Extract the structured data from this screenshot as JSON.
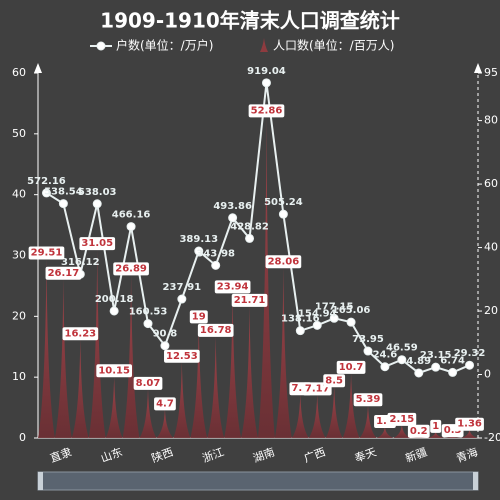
{
  "chart_data": {
    "type": "pictorial-bar-line",
    "title": "1909-1910年清末人口调查统计",
    "categories": [
      null,
      "直隶",
      null,
      null,
      "山东",
      null,
      null,
      "陕西",
      null,
      null,
      "浙江",
      null,
      null,
      "湖南",
      null,
      null,
      "广西",
      null,
      null,
      "奉天",
      null,
      null,
      "新疆",
      null,
      null,
      "青海"
    ],
    "series": [
      {
        "name": "户数(单位：/万户)",
        "type": "line",
        "axis": "y2",
        "color": "#e8f0f0",
        "values": [
          572.16,
          538.54,
          316.12,
          538.03,
          200.18,
          466.16,
          160.53,
          90.8,
          237.91,
          389.13,
          343.98,
          493.86,
          428.82,
          919.04,
          505.24,
          138.16,
          154.94,
          177.15,
          165.06,
          73.95,
          24.6,
          46.59,
          4.89,
          23.15,
          6.74,
          29.32
        ]
      },
      {
        "name": "人口数(单位：/百万人)",
        "type": "pictorial-bar",
        "color": "#8e3b3f",
        "values": [
          29.51,
          26.17,
          16.23,
          31.05,
          10.15,
          26.89,
          8.07,
          4.7,
          12.53,
          19,
          16.78,
          23.94,
          21.71,
          52.86,
          28.06,
          7.2,
          7.17,
          8.5,
          10.7,
          5.39,
          1.8,
          2.15,
          0.2,
          1.0,
          0.3,
          1.36
        ]
      }
    ],
    "ylim": [
      0,
      60
    ],
    "yticks": [
      0,
      10,
      20,
      30,
      40,
      50,
      60
    ],
    "y2lim": [
      -200,
      950
    ],
    "y2ticks": [
      {
        "value": -200,
        "label": "-20"
      },
      {
        "value": 0,
        "label": "0"
      },
      {
        "value": 200,
        "label": "20"
      },
      {
        "value": 400,
        "label": "40"
      },
      {
        "value": 600,
        "label": "60"
      },
      {
        "value": 800,
        "label": "80"
      },
      {
        "value": 950,
        "label": "95"
      }
    ]
  }
}
